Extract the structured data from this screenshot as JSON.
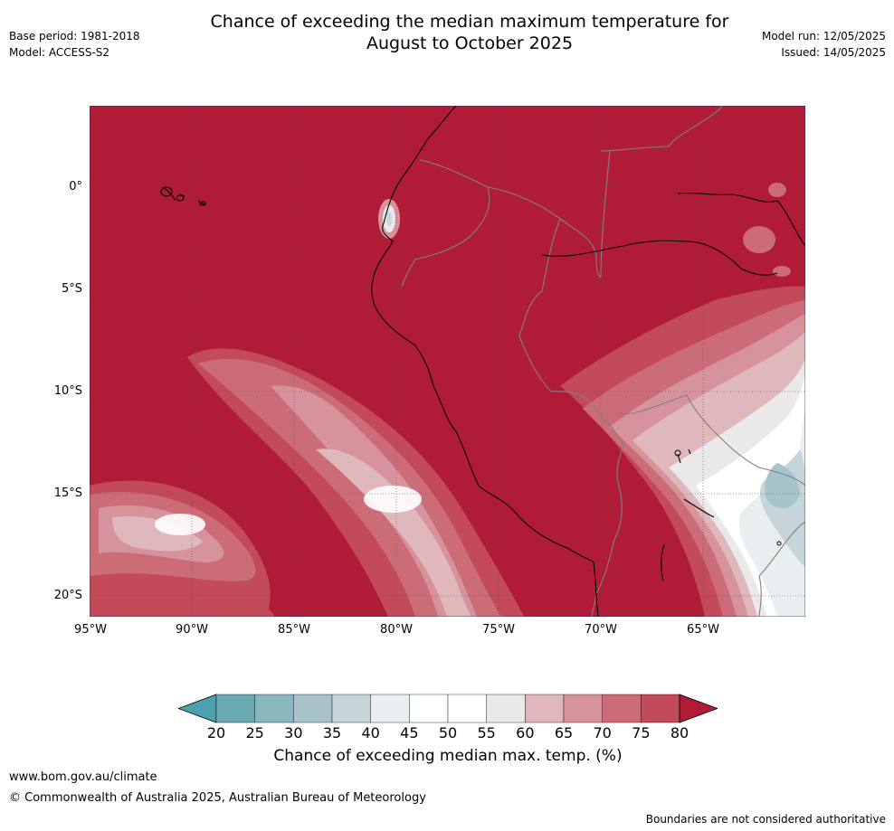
{
  "header": {
    "title_line1": "Chance of exceeding the median maximum temperature for",
    "title_line2": "August to October 2025",
    "base_period": "Base period: 1981-2018",
    "model": "Model: ACCESS-S2",
    "model_run": "Model run: 12/05/2025",
    "issued": "Issued: 14/05/2025"
  },
  "map": {
    "latitude_labels": [
      "0°",
      "5°S",
      "10°S",
      "15°S",
      "20°S"
    ],
    "longitude_labels": [
      "95°W",
      "90°W",
      "85°W",
      "80°W",
      "75°W",
      "70°W",
      "65°W"
    ],
    "colors": {
      "c80_plus": "#b01c38",
      "c75_80": "#c34a59",
      "c70_75": "#cc6c77",
      "c65_70": "#d6939b",
      "c60_65": "#e0b8bc",
      "c55_60": "#ebe8ea",
      "c45_55": "#ffffff",
      "c40_45": "#e9eef0",
      "c35_40": "#c6d5da",
      "c30_35": "#a8c4ca",
      "c25_30": "#8ab7bf",
      "c20_25": "#6ba9b5",
      "below_20": "#4aa2ae",
      "country_border": "#808080",
      "coastline": "#000000"
    }
  },
  "legend": {
    "ticks": [
      "20",
      "25",
      "30",
      "35",
      "40",
      "45",
      "50",
      "55",
      "60",
      "65",
      "70",
      "75",
      "80"
    ],
    "colors": [
      "#4aa2ae",
      "#6ba9b5",
      "#8ab7bf",
      "#a8c4ca",
      "#c6d5da",
      "#e9eef0",
      "#ffffff",
      "#ffffff",
      "#ebe8ea",
      "#e0b8bc",
      "#d6939b",
      "#cc6c77",
      "#c34a59",
      "#b01c38"
    ],
    "label": "Chance of exceeding median max. temp. (%)"
  },
  "footer": {
    "url": "www.bom.gov.au/climate",
    "copyright": "© Commonwealth of Australia 2025, Australian Bureau of Meteorology",
    "note": "Boundaries are not considered authoritative"
  }
}
